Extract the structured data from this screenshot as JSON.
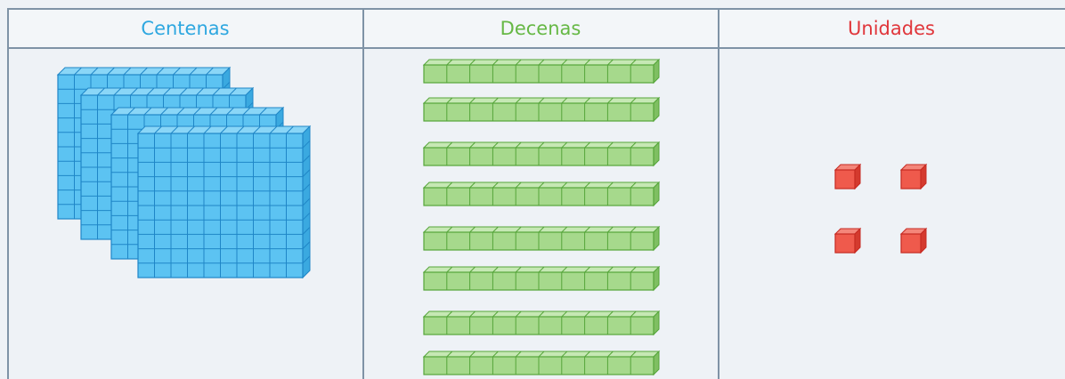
{
  "table": {
    "headers": [
      "Centenas",
      "Decenas",
      "Unidades"
    ]
  }
}
